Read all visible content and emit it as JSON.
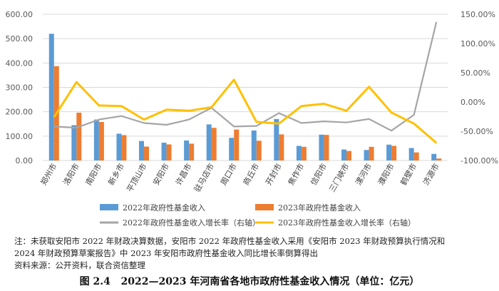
{
  "chart_data": {
    "type": "bar",
    "categories": [
      "郑州市",
      "洛阳市",
      "南阳市",
      "新乡市",
      "平顶山市",
      "安阳市",
      "许昌市",
      "驻马店市",
      "周口市",
      "商丘市",
      "开封市",
      "焦作市",
      "信阳市",
      "三门峡市",
      "漯河市",
      "濮阳市",
      "鹤壁市",
      "济源市"
    ],
    "series": [
      {
        "name": "2022年政府性基金收入",
        "axis": "left",
        "type": "bar",
        "color": "#5B9BD5",
        "values": [
          520,
          145,
          168,
          110,
          80,
          73,
          82,
          148,
          93,
          123,
          170,
          60,
          106,
          45,
          43,
          65,
          51,
          27
        ]
      },
      {
        "name": "2023年政府性基金收入",
        "axis": "left",
        "type": "bar",
        "color": "#ED7D31",
        "values": [
          387,
          196,
          158,
          104,
          57,
          66,
          69,
          134,
          127,
          81,
          107,
          56,
          105,
          39,
          56,
          60,
          33,
          8
        ]
      },
      {
        "name": "2022年政府性基金收入增长率（右轴）",
        "axis": "right",
        "type": "line",
        "color": "#A5A5A5",
        "values": [
          -42,
          -44,
          -30,
          -24,
          -36,
          -39,
          -30,
          -10,
          -42,
          -41,
          -19,
          -36,
          -33,
          -35,
          -29,
          -49,
          -22,
          137
        ]
      },
      {
        "name": "2023年政府性基金收入增长率（右轴）",
        "axis": "right",
        "type": "line",
        "color": "#FFC000",
        "values": [
          -26,
          34,
          -6,
          -7,
          -30,
          -13,
          -15,
          -9,
          38,
          -34,
          -37,
          -7,
          -3,
          -15,
          26,
          -18,
          -37,
          -70
        ]
      }
    ],
    "ylim_left": [
      0,
      600
    ],
    "yticks_left": [
      "0.00",
      "100.00",
      "200.00",
      "300.00",
      "400.00",
      "500.00",
      "600.00"
    ],
    "ylim_right": [
      -100,
      150
    ],
    "yticks_right": [
      "-100.00%",
      "-50.00%",
      "0.00%",
      "50.00%",
      "100.00%",
      "150.00%"
    ],
    "grid": "horizontal",
    "legend_position": "bottom"
  },
  "notes": {
    "line1": "注：未获取安阳市 2022 年财政决算数据，安阳市 2022 年政府性基金收入采用《安阳市 2023 年财政预算执行情况和",
    "line2": "2024 年财政预算草案报告》中 2023 年安阳市政府性基金收入同比增长率倒算得出",
    "source": "资料来源：公开资料，联合资信整理"
  },
  "caption": {
    "label": "图 2.4",
    "text": "2022—2023 年河南省各地市政府性基金收入情况（单位：亿元）"
  }
}
